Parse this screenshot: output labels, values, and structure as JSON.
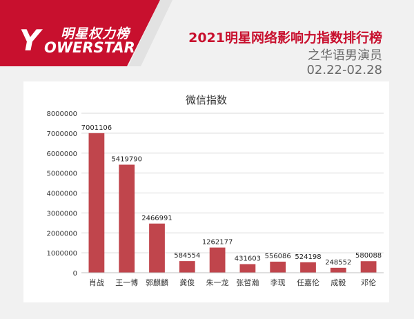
{
  "header": {
    "logo_cn": "明星权力榜",
    "logo_letter": "Y",
    "logo_en": "OWERSTAR",
    "title": "2021明星网络影响力指数排行榜",
    "subtitle": "之华语男演员",
    "date_range": "02.22-02.28"
  },
  "colors": {
    "accent": "#c8102e",
    "bar": "#c0454c",
    "gridline": "#d9d9d9"
  },
  "chart_data": {
    "type": "bar",
    "title": "微信指数",
    "categories": [
      "肖战",
      "王一博",
      "郭麒麟",
      "龚俊",
      "朱一龙",
      "张哲瀚",
      "李现",
      "任嘉伦",
      "成毅",
      "邓伦"
    ],
    "values": [
      7001106,
      5419790,
      2466991,
      584554,
      1262177,
      431603,
      556086,
      524198,
      248552,
      580088
    ],
    "ylim": [
      0,
      8000000
    ],
    "yticks": [
      0,
      1000000,
      2000000,
      3000000,
      4000000,
      5000000,
      6000000,
      7000000,
      8000000
    ],
    "grid": true,
    "data_labels": true
  }
}
